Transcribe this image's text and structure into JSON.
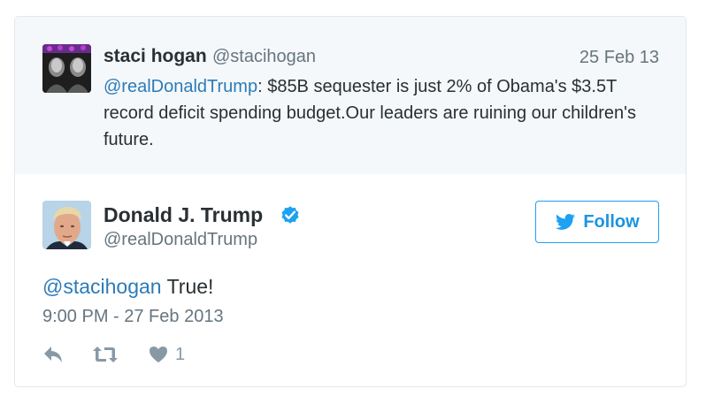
{
  "reply_context": {
    "name": "staci hogan",
    "handle": "@stacihogan",
    "date": "25 Feb 13",
    "mention": "@realDonaldTrump",
    "text": ": $85B sequester is just 2% of Obama's $3.5T record deficit spending budget.Our leaders are ruining our children's future.",
    "avatar_icon": "profile-photo"
  },
  "tweet": {
    "author_name": "Donald J. Trump",
    "author_handle": "@realDonaldTrump",
    "verified_icon": "verified-badge-icon",
    "follow_label": "Follow",
    "follow_icon": "twitter-bird-icon",
    "mention": "@stacihogan",
    "text": " True!",
    "timestamp": "9:00 PM - 27 Feb 2013",
    "actions": {
      "reply_icon": "reply-icon",
      "retweet_icon": "retweet-icon",
      "like_icon": "heart-icon",
      "like_count": "1"
    }
  },
  "colors": {
    "link": "#2b7bb9",
    "follow": "#1da1f2",
    "secondary_text": "#66757f",
    "context_background": "#f5f8fa"
  }
}
